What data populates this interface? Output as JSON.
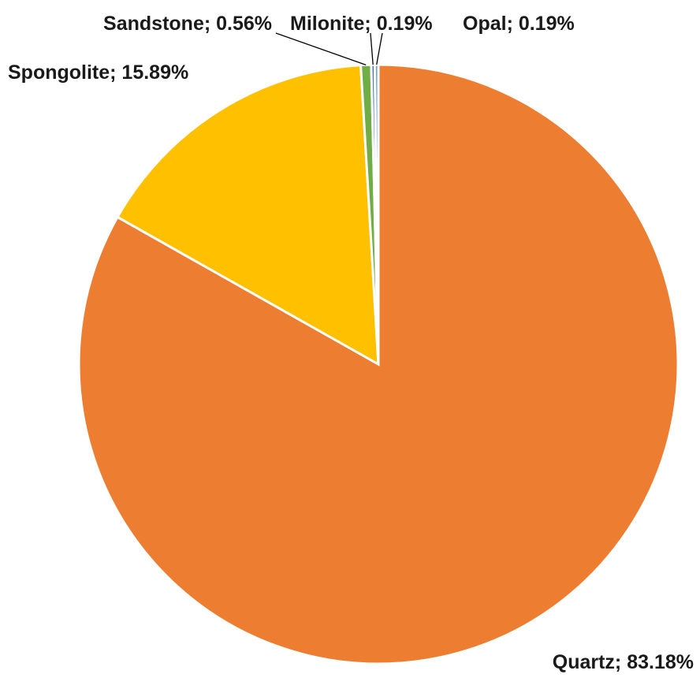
{
  "chart_data": {
    "type": "pie",
    "title": "",
    "slices": [
      {
        "label": "Quartz",
        "value": 83.18,
        "display": "Quartz; 83.18%",
        "color": "#ED7D31"
      },
      {
        "label": "Spongolite",
        "value": 15.89,
        "display": "Spongolite; 15.89%",
        "color": "#FFC000"
      },
      {
        "label": "Sandstone",
        "value": 0.56,
        "display": "Sandstone; 0.56%",
        "color": "#70AD47"
      },
      {
        "label": "Milonite",
        "value": 0.19,
        "display": "Milonite; 0.19%",
        "color": "#4472C4"
      },
      {
        "label": "Opal",
        "value": 0.19,
        "display": "Opal; 0.19%",
        "color": "#5B9BD5"
      }
    ],
    "start_angle_deg": 0,
    "direction": "clockwise",
    "legend": "none",
    "label_format": "category; percentage"
  }
}
